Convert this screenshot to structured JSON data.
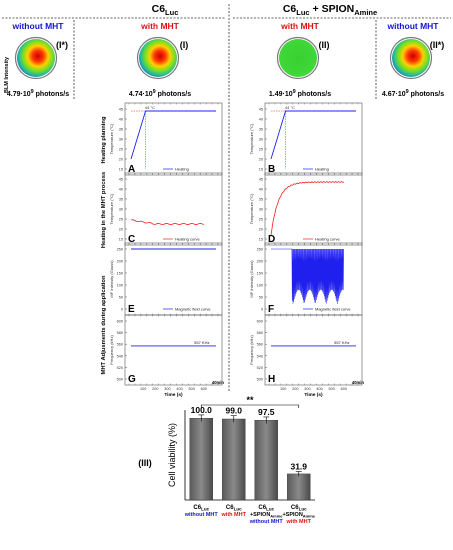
{
  "figure": {
    "group_left": {
      "main": "C6",
      "sub": "Luc"
    },
    "group_right": {
      "main": "C6",
      "sub1": "Luc",
      "mid": " + SPION",
      "sub2": "Amine"
    },
    "ylabel_bioluminescence": "BLM Intensity",
    "columns": [
      {
        "header": "without MHT",
        "header_color": "#1515cc",
        "tag": "(I*)",
        "value": "4.79·10",
        "exp": "9",
        "unit": " photons/s",
        "image": "heatmap-hot"
      },
      {
        "header": "with MHT",
        "header_color": "#dd1111",
        "tag": "(I)",
        "value": "4.74·10",
        "exp": "9",
        "unit": " photons/s",
        "image": "heatmap-hot"
      },
      {
        "header": "with MHT",
        "header_color": "#dd1111",
        "tag": "(II)",
        "value": "1.49·10",
        "exp": "9",
        "unit": " photons/s",
        "image": "heatmap-cool"
      },
      {
        "header": "without MHT",
        "header_color": "#1515cc",
        "tag": "(II*)",
        "value": "4.67·10",
        "exp": "9",
        "unit": " photons/s",
        "image": "heatmap-hot"
      }
    ],
    "row_labels": [
      "Heating planning",
      "Heating in the MHT process",
      "MHT Adjusments during application"
    ],
    "x_axis_label": "Time (s)",
    "x_ticks": [
      "100",
      "200",
      "300",
      "400",
      "500",
      "600"
    ],
    "panels": [
      {
        "letter": "A",
        "ylabel": "Temperature (°C)",
        "yticks": [
          "45",
          "40",
          "35",
          "30",
          "25",
          "20",
          "15"
        ],
        "legend": "Heating",
        "legend_color": "#2020ee",
        "kind": "plan",
        "annotation": "44 °C"
      },
      {
        "letter": "B",
        "ylabel": "Temperature (°C)",
        "yticks": [
          "45",
          "40",
          "35",
          "30",
          "25",
          "20",
          "15"
        ],
        "legend": "Heating",
        "legend_color": "#2020ee",
        "kind": "plan",
        "annotation": "44 °C"
      },
      {
        "letter": "C",
        "ylabel": "Temperature (°C)",
        "yticks": [
          "45",
          "40",
          "35",
          "30",
          "25",
          "20",
          "15"
        ],
        "legend": "Heating curve",
        "legend_color": "#ee2020",
        "kind": "flat",
        "annotation": ""
      },
      {
        "letter": "D",
        "ylabel": "Temperature (°C)",
        "yticks": [
          "45",
          "40",
          "35",
          "30",
          "25",
          "20",
          "15"
        ],
        "legend": "Heating curve",
        "legend_color": "#ee2020",
        "kind": "rise",
        "annotation": ""
      },
      {
        "letter": "E",
        "ylabel": "MF Intensity (Gauss)",
        "yticks": [
          "250",
          "200",
          "150",
          "100",
          "50",
          "0"
        ],
        "legend": "Magnetic field curve",
        "legend_color": "#2020ee",
        "kind": "field",
        "annotation": ""
      },
      {
        "letter": "F",
        "ylabel": "MF Intensity (Gauss)",
        "yticks": [
          "250",
          "200",
          "150",
          "100",
          "50",
          "0"
        ],
        "legend": "Magnetic field curve",
        "legend_color": "#2020ee",
        "kind": "oscillate",
        "annotation": ""
      },
      {
        "letter": "G",
        "ylabel": "Frequency (kHz)",
        "yticks": [
          "600",
          "580",
          "560",
          "540",
          "520",
          "500"
        ],
        "legend": "",
        "legend_color": "#2020ee",
        "kind": "freq",
        "annotation": "557 KHz"
      },
      {
        "letter": "H",
        "ylabel": "Frequency (kHz)",
        "yticks": [
          "600",
          "580",
          "560",
          "540",
          "520",
          "500"
        ],
        "legend": "",
        "legend_color": "#2020ee",
        "kind": "freq",
        "annotation": "557 KHz"
      }
    ],
    "end_labels": [
      "40min",
      "40min"
    ],
    "bottom_tag": "(III)"
  },
  "chart_data": {
    "type": "bar",
    "title": "",
    "xlabel": "",
    "ylabel": "Cell viability (%)",
    "ylim": [
      0,
      110
    ],
    "categories": [
      {
        "line1": "C6",
        "sub1": "Luc",
        "line2": "",
        "line3": "without MHT",
        "color": "#1515cc"
      },
      {
        "line1": "C6",
        "sub1": "Luc",
        "line2": "",
        "line3": "with MHT",
        "color": "#dd1111"
      },
      {
        "line1": "C6",
        "sub1": "Luc",
        "line2": "+SPION",
        "sub2": "Amine",
        "line3": "without MHT",
        "color": "#1515cc"
      },
      {
        "line1": "C6",
        "sub1": "Luc",
        "line2": "+SPION",
        "sub2": "Amine",
        "line3": "with MHT",
        "color": "#dd1111"
      }
    ],
    "values": [
      100.0,
      99.0,
      97.5,
      31.9
    ],
    "value_labels": [
      "100.0",
      "99.0",
      "97.5",
      "31.9"
    ],
    "errors": [
      4.0,
      4.0,
      4.0,
      3.0
    ],
    "significance": "**",
    "grid": false
  }
}
